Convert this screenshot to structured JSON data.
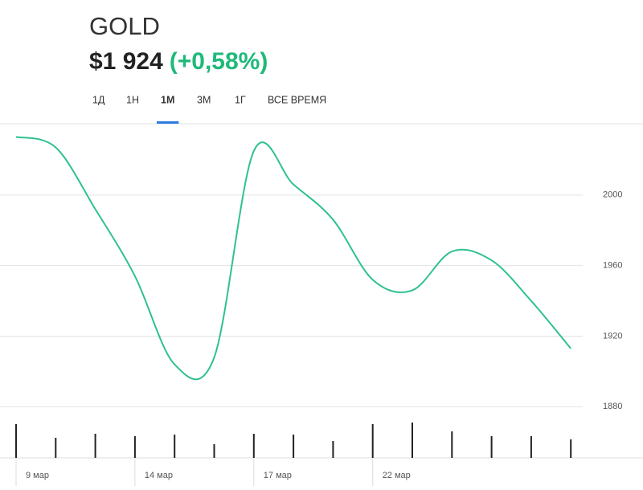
{
  "header": {
    "title": "GOLD",
    "price": "$1 924",
    "change": "(+0,58%)"
  },
  "tabs": {
    "items": [
      "1Д",
      "1Н",
      "1М",
      "3М",
      "1Г",
      "ВСЕ ВРЕМЯ"
    ],
    "active": 2
  },
  "chart_data": {
    "type": "line",
    "x": [
      "9 мар",
      null,
      null,
      "14 мар",
      null,
      null,
      "17 мар",
      null,
      null,
      "22 мар",
      null,
      null,
      null,
      null,
      null
    ],
    "series": [
      {
        "color": "#2ec28c",
        "values": [
          2033,
          2027,
          1992,
          1954,
          1904,
          1908,
          2025,
          2006,
          1986,
          1952,
          1946,
          1968,
          1963,
          1940,
          1913
        ]
      }
    ],
    "volume": [
      42,
      25,
      30,
      27,
      29,
      17,
      30,
      29,
      21,
      42,
      44,
      33,
      27,
      27,
      23
    ],
    "ylim": [
      1851,
      2040
    ],
    "yticks": [
      1880,
      1920,
      1960,
      2000
    ],
    "grid": true
  }
}
